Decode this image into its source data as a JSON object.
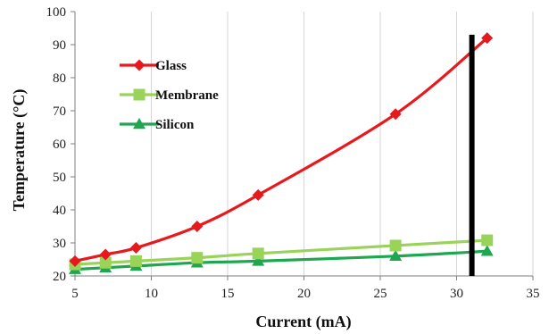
{
  "chart_data": {
    "type": "line",
    "title": "",
    "xlabel": "Current  (mA)",
    "ylabel": "Temperature (°C)",
    "xlim": [
      5,
      35
    ],
    "ylim": [
      20,
      100
    ],
    "xticks": [
      5,
      10,
      15,
      20,
      25,
      30,
      35
    ],
    "yticks": [
      20,
      30,
      40,
      50,
      60,
      70,
      80,
      90,
      100
    ],
    "grid": "vertical",
    "legend_position": "upper-left",
    "series": [
      {
        "name": "Glass",
        "color": "#e8191c",
        "marker": "diamond",
        "x": [
          5,
          7,
          9,
          13,
          17,
          26,
          32
        ],
        "y": [
          24.5,
          26.5,
          28.5,
          35,
          44.5,
          69,
          92
        ]
      },
      {
        "name": "Membrane",
        "color": "#9ad35a",
        "marker": "square",
        "x": [
          5,
          7,
          9,
          13,
          17,
          26,
          32
        ],
        "y": [
          23.5,
          24,
          24.5,
          25.5,
          26.8,
          29.2,
          30.8
        ]
      },
      {
        "name": "Silicon",
        "color": "#1fa650",
        "marker": "triangle",
        "x": [
          5,
          7,
          9,
          13,
          17,
          26,
          32
        ],
        "y": [
          22,
          22.5,
          23,
          24,
          24.5,
          26,
          27.5
        ]
      }
    ],
    "annotations": [
      {
        "type": "vertical-line",
        "x": 31,
        "y_range": [
          20,
          93
        ],
        "color": "#000000"
      }
    ]
  }
}
